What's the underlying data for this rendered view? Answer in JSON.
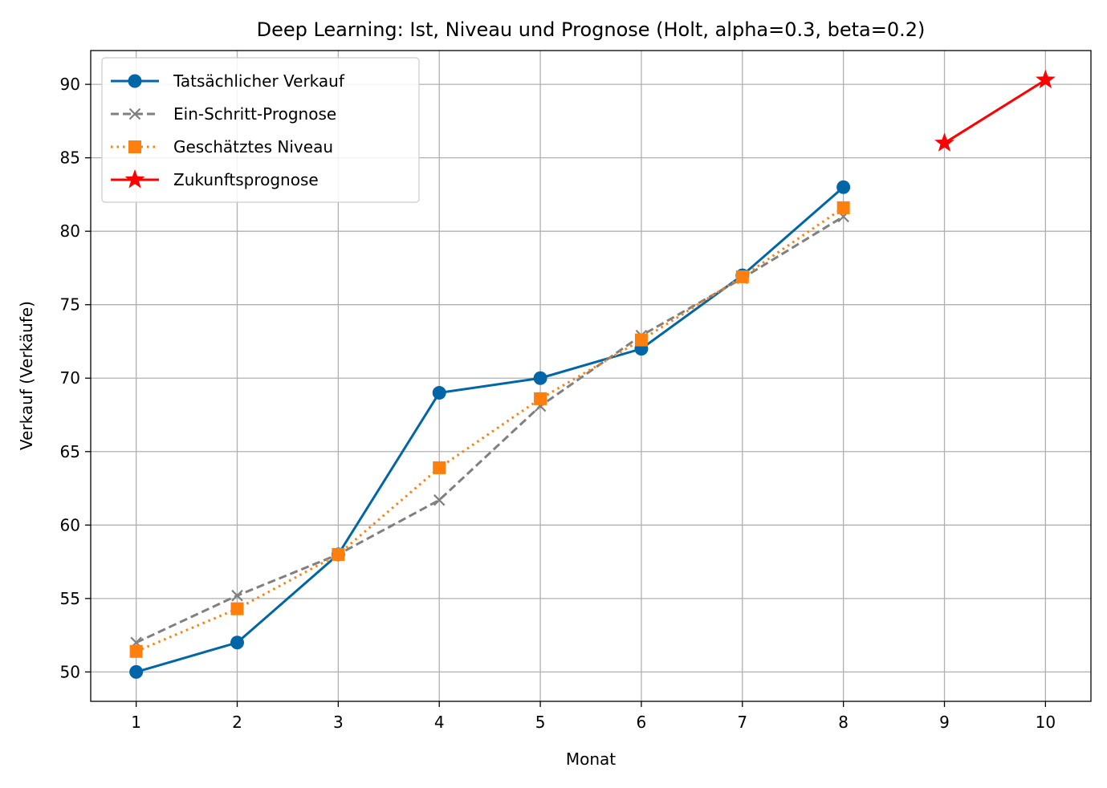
{
  "chart_data": {
    "type": "line",
    "title": "Deep Learning: Ist, Niveau und Prognose (Holt, alpha=0.3, beta=0.2)",
    "xlabel": "Monat",
    "ylabel": "Verkauf (Verkäufe)",
    "xlim": [
      0.55,
      10.45
    ],
    "ylim": [
      48.0,
      92.3
    ],
    "xticks": [
      1,
      2,
      3,
      4,
      5,
      6,
      7,
      8,
      9,
      10
    ],
    "yticks": [
      50,
      55,
      60,
      65,
      70,
      75,
      80,
      85,
      90
    ],
    "grid": true,
    "legend_position": "top-left",
    "series": [
      {
        "name": "Tatsächlicher Verkauf",
        "color": "#0066a8",
        "linestyle": "solid",
        "marker": "circle",
        "x": [
          1,
          2,
          3,
          4,
          5,
          6,
          7,
          8
        ],
        "y": [
          50,
          52,
          58,
          69,
          70,
          72,
          77,
          83
        ]
      },
      {
        "name": "Ein-Schritt-Prognose",
        "color": "#808080",
        "linestyle": "dashed",
        "marker": "x",
        "x": [
          1,
          2,
          3,
          4,
          5,
          6,
          7,
          8
        ],
        "y": [
          52.0,
          55.2,
          58.0,
          61.7,
          68.1,
          72.9,
          76.8,
          81.0
        ]
      },
      {
        "name": "Geschätztes Niveau",
        "color": "#ff7f0e",
        "linestyle": "dotted",
        "marker": "square",
        "x": [
          1,
          2,
          3,
          4,
          5,
          6,
          7,
          8
        ],
        "y": [
          51.4,
          54.3,
          58.0,
          63.9,
          68.6,
          72.6,
          76.9,
          81.6
        ]
      },
      {
        "name": "Zukunftsprognose",
        "color": "#ff0000",
        "linestyle": "solid",
        "marker": "star",
        "x": [
          9,
          10
        ],
        "y": [
          86.0,
          90.3
        ]
      }
    ]
  }
}
